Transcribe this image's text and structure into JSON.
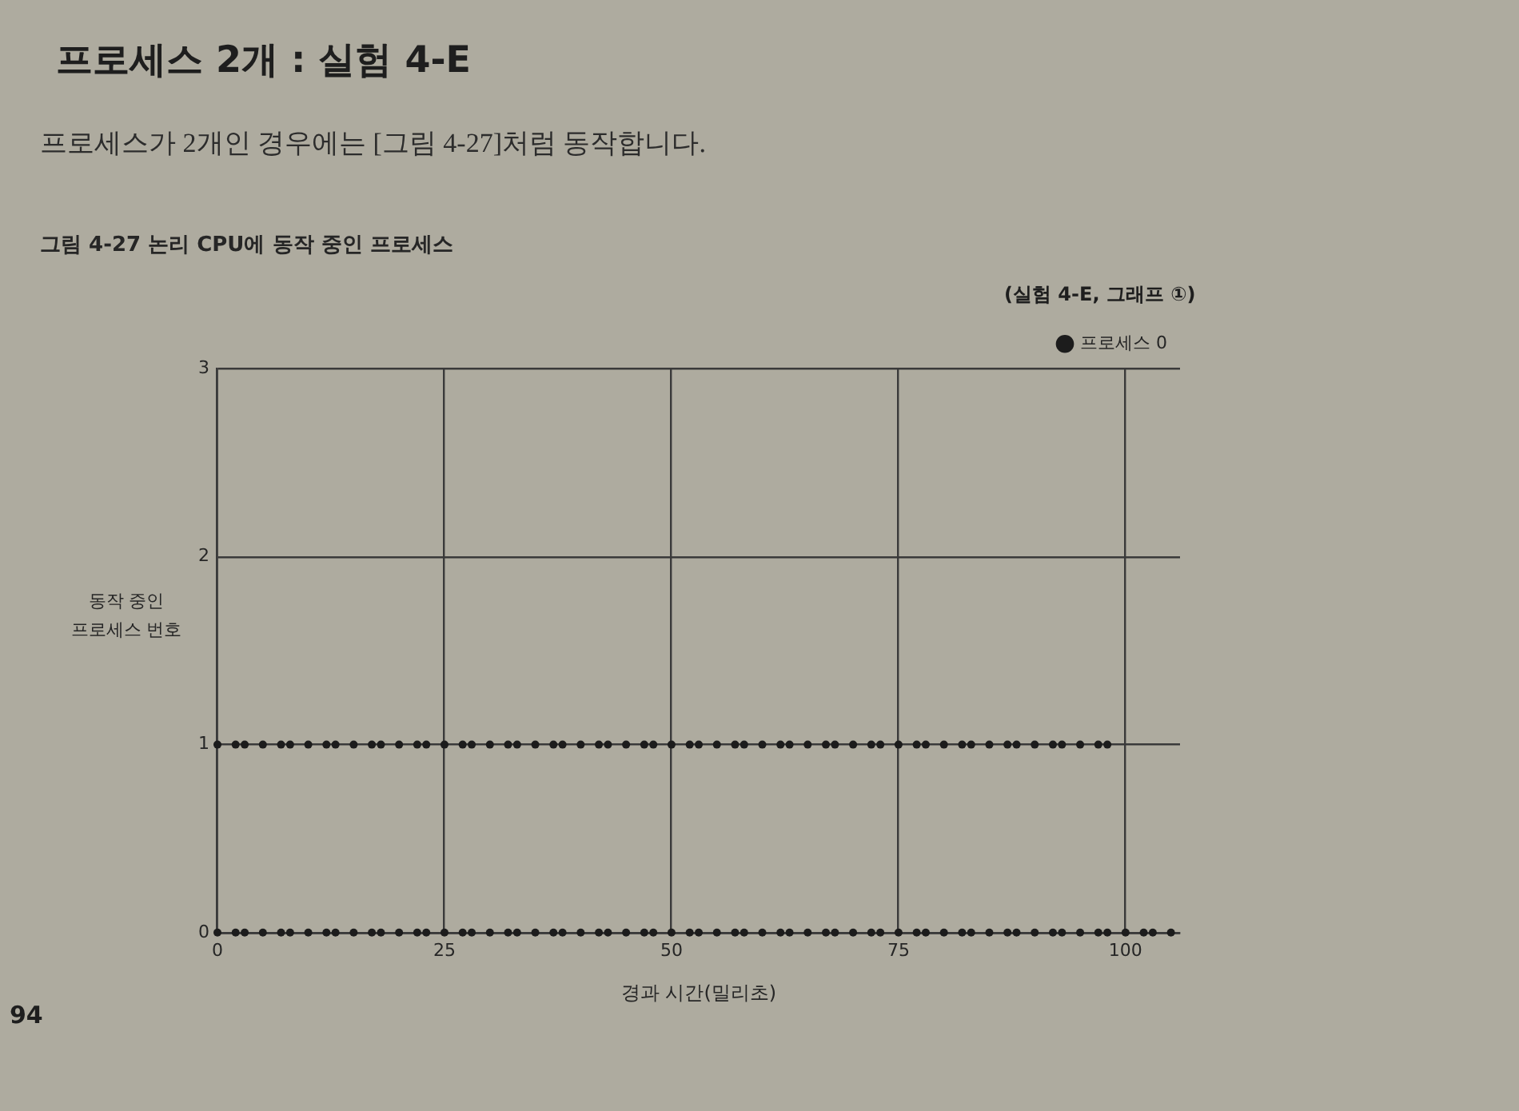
{
  "chart_data": {
    "type": "scatter",
    "title": "그림 4-27 논리 CPU에 동작 중인 프로세스",
    "xlabel": "경과 시간(밀리초)",
    "ylabel": "동작 중인 프로세스 번호",
    "annotations": [
      "프로세스 2개 : 실험 4-E",
      "프로세스가 2개인 경우에는 [그림 4-27]처럼 동작합니다.",
      "(실험 4-E, 그래프 ①)",
      "94"
    ],
    "x": [
      0,
      2,
      3,
      5,
      7,
      8,
      10,
      12,
      13,
      15,
      17,
      18,
      20,
      22,
      23,
      25,
      27,
      28,
      30,
      32,
      33,
      35,
      37,
      38,
      40,
      42,
      43,
      45,
      47,
      48,
      50,
      52,
      53,
      55,
      57,
      58,
      60,
      62,
      63,
      65,
      67,
      68,
      70,
      72,
      73,
      75,
      77,
      78,
      80,
      82,
      83,
      85,
      87,
      88,
      90,
      92,
      93,
      95,
      97,
      98,
      100,
      102,
      103,
      105,
      0,
      2,
      3,
      5,
      7,
      8,
      10,
      12,
      13,
      15,
      17,
      18,
      20,
      22,
      23,
      25,
      27,
      28,
      30,
      32,
      33,
      35,
      37,
      38,
      40,
      42,
      43,
      45,
      47,
      48,
      50,
      52,
      53,
      55,
      57,
      58,
      60,
      62,
      63,
      65,
      67,
      68,
      70,
      72,
      73,
      75,
      77,
      78,
      80,
      82,
      83,
      85,
      87,
      88,
      90,
      92,
      93,
      95,
      97,
      98
    ],
    "series": [
      {
        "name": "프로세스 0",
        "color": "#1c1c1c",
        "values": [
          0,
          0,
          0,
          0,
          0,
          0,
          0,
          0,
          0,
          0,
          0,
          0,
          0,
          0,
          0,
          0,
          0,
          0,
          0,
          0,
          0,
          0,
          0,
          0,
          0,
          0,
          0,
          0,
          0,
          0,
          0,
          0,
          0,
          0,
          0,
          0,
          0,
          0,
          0,
          0,
          0,
          0,
          0,
          0,
          0,
          0,
          0,
          0,
          0,
          0,
          0,
          0,
          0,
          0,
          0,
          0,
          0,
          0,
          0,
          0,
          0,
          0,
          0,
          0,
          1,
          1,
          1,
          1,
          1,
          1,
          1,
          1,
          1,
          1,
          1,
          1,
          1,
          1,
          1,
          1,
          1,
          1,
          1,
          1,
          1,
          1,
          1,
          1,
          1,
          1,
          1,
          1,
          1,
          1,
          1,
          1,
          1,
          1,
          1,
          1,
          1,
          1,
          1,
          1,
          1,
          1,
          1,
          1,
          1,
          1,
          1,
          1,
          1,
          1,
          1,
          1,
          1,
          1,
          1,
          1,
          1,
          1,
          1,
          1
        ]
      }
    ],
    "xlim": [
      0,
      106
    ],
    "ylim": [
      0,
      3
    ],
    "xticks": [
      0,
      25,
      50,
      75,
      100
    ],
    "yticks": [
      0,
      1,
      2,
      3
    ],
    "grid": true,
    "legend": "top right",
    "marker": "circle"
  }
}
